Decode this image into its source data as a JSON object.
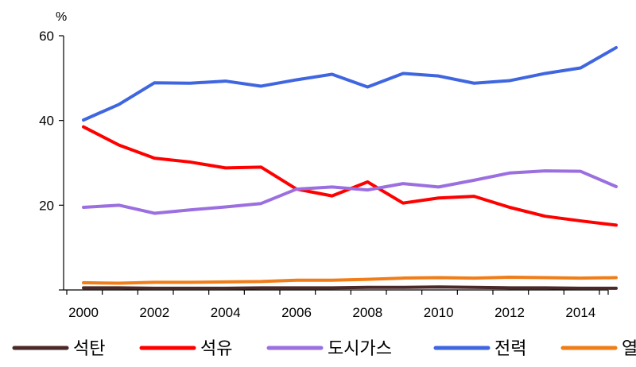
{
  "chart_data": {
    "type": "line",
    "title": "",
    "xlabel": "",
    "ylabel": "",
    "unit": "%",
    "x": [
      2000,
      2001,
      2002,
      2003,
      2004,
      2005,
      2006,
      2007,
      2008,
      2009,
      2010,
      2011,
      2012,
      2013,
      2014,
      2015
    ],
    "x_tick_labels": [
      "2000",
      "2002",
      "2004",
      "2006",
      "2008",
      "2010",
      "2012",
      "2014"
    ],
    "x_tick_values": [
      2000,
      2002,
      2004,
      2006,
      2008,
      2010,
      2012,
      2014
    ],
    "y_ticks": [
      20,
      40,
      60
    ],
    "y_tick_labels": [
      "20",
      "40",
      "60"
    ],
    "xlim": [
      2000,
      2015
    ],
    "ylim": [
      0,
      60
    ],
    "grid": false,
    "legend_position": "bottom",
    "series": [
      {
        "name": "석탄",
        "color": "#4a2a28",
        "values": [
          0.5,
          0.5,
          0.4,
          0.4,
          0.4,
          0.5,
          0.5,
          0.5,
          0.6,
          0.6,
          0.7,
          0.6,
          0.5,
          0.5,
          0.4,
          0.4
        ]
      },
      {
        "name": "석유",
        "color": "#ff0000",
        "values": [
          38.5,
          34.2,
          31.1,
          30.2,
          28.8,
          29.0,
          23.8,
          22.2,
          25.5,
          20.5,
          21.7,
          22.1,
          19.5,
          17.4,
          16.3,
          15.3
        ]
      },
      {
        "name": "도시가스",
        "color": "#9b6fe0",
        "values": [
          19.5,
          20.0,
          18.1,
          18.9,
          19.6,
          20.4,
          23.8,
          24.3,
          23.6,
          25.1,
          24.3,
          25.9,
          27.6,
          28.1,
          28.0,
          24.4
        ]
      },
      {
        "name": "전력",
        "color": "#3f66e0",
        "values": [
          40.1,
          43.8,
          48.9,
          48.8,
          49.3,
          48.1,
          49.6,
          50.9,
          47.9,
          51.1,
          50.5,
          48.8,
          49.4,
          51.1,
          52.4,
          57.2
        ]
      },
      {
        "name": "열에너지",
        "color": "#f07d18",
        "values": [
          1.7,
          1.6,
          1.8,
          1.8,
          1.9,
          2.0,
          2.3,
          2.3,
          2.5,
          2.8,
          2.9,
          2.8,
          3.0,
          2.9,
          2.8,
          2.9
        ]
      }
    ]
  }
}
